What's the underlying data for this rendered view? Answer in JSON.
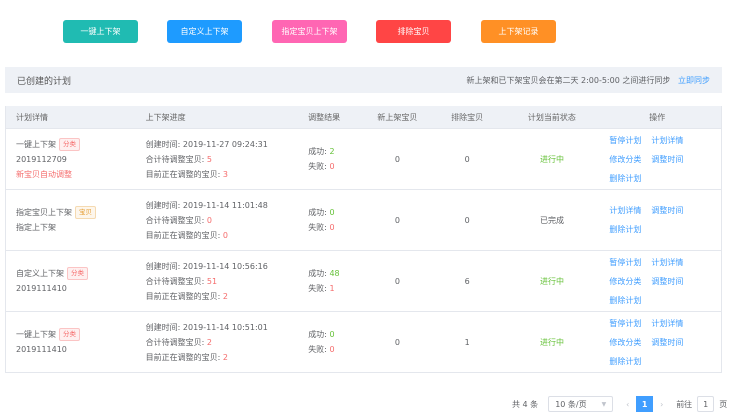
{
  "toolbar": [
    {
      "label": "一键上下架",
      "color": "#20bbb2"
    },
    {
      "label": "自定义上下架",
      "color": "#1e9bff"
    },
    {
      "label": "指定宝贝上下架",
      "color": "#ff66b3"
    },
    {
      "label": "排除宝贝",
      "color": "#ff4545"
    },
    {
      "label": "上下架记录",
      "color": "#ff9025"
    }
  ],
  "section": {
    "title": "已创建的计划",
    "note": "新上架和已下架宝贝会在第二天 2:00-5:00 之间进行同步",
    "sync_link": "立即同步"
  },
  "table": {
    "headers": [
      "计划详情",
      "上下架进度",
      "调整结果",
      "新上架宝贝",
      "排除宝贝",
      "计划当前状态",
      "操作"
    ],
    "labels": {
      "created": "创建时间: ",
      "total": "合计待调整宝贝: ",
      "current": "目前正在调整的宝贝: ",
      "success": "成功: ",
      "fail": "失败: "
    },
    "rows": [
      {
        "name": "一键上下架",
        "tag": "分类",
        "tag_type": "red",
        "sub": "2019112709",
        "extra": "新宝贝自动调整",
        "created": "2019-11-27 09:24:31",
        "total": "5",
        "current": "3",
        "success": "2",
        "fail": "0",
        "new": "0",
        "excluded": "0",
        "status": "进行中",
        "status_color": "#67c23a",
        "ops": [
          "暂停计划",
          "计划详情",
          "修改分类",
          "调整时间",
          "删除计划"
        ]
      },
      {
        "name": "指定宝贝上下架",
        "tag": "宝贝",
        "tag_type": "yel",
        "sub": "指定上下架",
        "extra": "",
        "created": "2019-11-14 11:01:48",
        "total": "0",
        "current": "0",
        "success": "0",
        "fail": "0",
        "new": "0",
        "excluded": "0",
        "status": "已完成",
        "status_color": "#606266",
        "ops": [
          "计划详情",
          "调整时间",
          "删除计划"
        ]
      },
      {
        "name": "自定义上下架",
        "tag": "分类",
        "tag_type": "red",
        "sub": "2019111410",
        "extra": "",
        "created": "2019-11-14 10:56:16",
        "total": "51",
        "current": "2",
        "success": "48",
        "fail": "1",
        "new": "0",
        "excluded": "6",
        "status": "进行中",
        "status_color": "#67c23a",
        "ops": [
          "暂停计划",
          "计划详情",
          "修改分类",
          "调整时间",
          "删除计划"
        ]
      },
      {
        "name": "一键上下架",
        "tag": "分类",
        "tag_type": "red",
        "sub": "2019111410",
        "extra": "",
        "created": "2019-11-14 10:51:01",
        "total": "2",
        "current": "2",
        "success": "0",
        "fail": "0",
        "new": "0",
        "excluded": "1",
        "status": "进行中",
        "status_color": "#67c23a",
        "ops": [
          "暂停计划",
          "计划详情",
          "修改分类",
          "调整时间",
          "删除计划"
        ]
      }
    ]
  },
  "pagination": {
    "total": "共 4 条",
    "page_size": "10 条/页",
    "current_page": "1",
    "goto_label": "前往",
    "goto_value": "1",
    "page_suffix": "页"
  }
}
